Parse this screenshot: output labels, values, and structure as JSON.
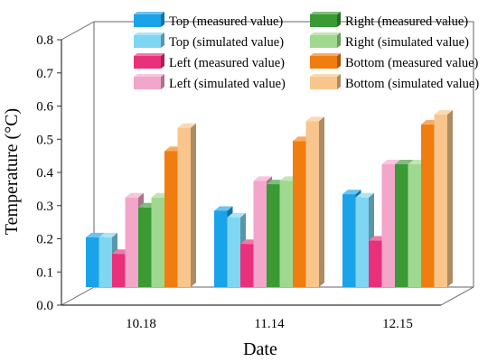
{
  "chart_data": {
    "type": "bar",
    "title": "",
    "xlabel": "Date",
    "ylabel": "Temperature (°C)",
    "ylim": [
      0,
      0.8
    ],
    "yticks": [
      "0.0",
      "0.1",
      "0.2",
      "0.3",
      "0.4",
      "0.5",
      "0.6",
      "0.7",
      "0.8"
    ],
    "categories": [
      "10.18",
      "11.14",
      "12.15"
    ],
    "grid": false,
    "legend_position": "top-right",
    "series": [
      {
        "name": "Top (measured value)",
        "color": "#1aa3e8",
        "values": [
          0.15,
          0.23,
          0.28
        ]
      },
      {
        "name": "Top (simulated value)",
        "color": "#7fd6f2",
        "values": [
          0.15,
          0.21,
          0.27
        ]
      },
      {
        "name": "Left (measured value)",
        "color": "#e8317a",
        "values": [
          0.1,
          0.13,
          0.14
        ]
      },
      {
        "name": "Left (simulated value)",
        "color": "#f2a6c9",
        "values": [
          0.27,
          0.32,
          0.37
        ]
      },
      {
        "name": "Right (measured value)",
        "color": "#3a9a35",
        "values": [
          0.24,
          0.31,
          0.37
        ]
      },
      {
        "name": "Right (simulated value)",
        "color": "#9fd98f",
        "values": [
          0.27,
          0.32,
          0.37
        ]
      },
      {
        "name": "Bottom (measured value)",
        "color": "#f07d10",
        "values": [
          0.41,
          0.44,
          0.49
        ]
      },
      {
        "name": "Bottom (simulated value)",
        "color": "#f8c68c",
        "values": [
          0.48,
          0.5,
          0.52
        ]
      }
    ]
  }
}
